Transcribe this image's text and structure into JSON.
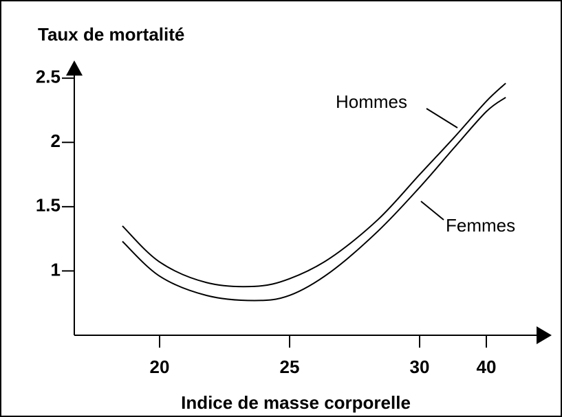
{
  "chart_data": {
    "type": "line",
    "title": "Taux de mortalité",
    "x_label": "Indice de masse corporelle",
    "xlim": [
      16.7,
      48.5
    ],
    "xticks": [
      20,
      25,
      30,
      40
    ],
    "ylim": [
      0.5,
      2.6
    ],
    "yticks": [
      1,
      1.5,
      2,
      2.5
    ],
    "grid": false,
    "series": [
      {
        "name": "Hommes",
        "color": "#000000",
        "x": [
          18.57,
          20,
          21.8,
          23.65,
          25,
          26.56,
          28.4,
          30,
          35.2,
          40,
          42.9
        ],
        "values": [
          1.35,
          1.07,
          0.91,
          0.88,
          0.94,
          1.1,
          1.4,
          1.75,
          2.04,
          2.32,
          2.46
        ]
      },
      {
        "name": "Femmes",
        "color": "#000000",
        "x": [
          18.57,
          20,
          21.8,
          23.65,
          25,
          26.56,
          28.4,
          30,
          35.2,
          40,
          42.9
        ],
        "values": [
          1.23,
          0.96,
          0.81,
          0.77,
          0.81,
          0.99,
          1.31,
          1.65,
          1.96,
          2.24,
          2.35
        ]
      }
    ]
  }
}
